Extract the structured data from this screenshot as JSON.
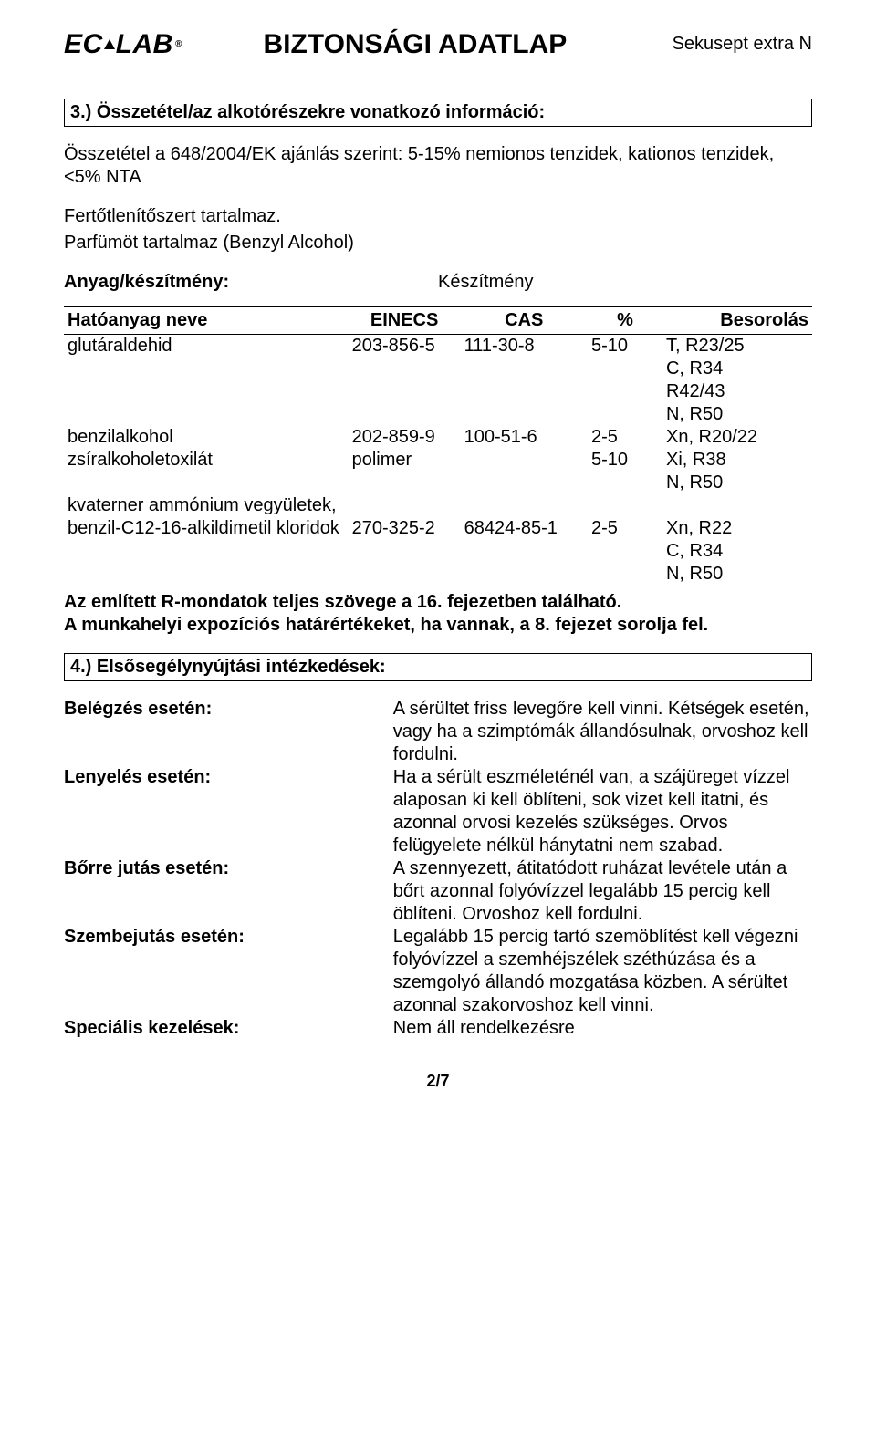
{
  "header": {
    "logo_text_1": "EC",
    "logo_text_2": "LAB",
    "logo_reg": "®",
    "doc_title": "BIZTONSÁGI ADATLAP",
    "product_name": "Sekusept extra N"
  },
  "section3": {
    "title": "3.) Összetétel/az alkotórészekre vonatkozó információ:",
    "composition_intro": "Összetétel a 648/2004/EK ajánlás szerint: 5-15% nemionos tenzidek, kationos tenzidek, <5% NTA",
    "disinfectant_note": "Fertőtlenítőszert tartalmaz.",
    "perfume_note": "Parfümöt tartalmaz (Benzyl Alcohol)",
    "material_label": "Anyag/készítmény:",
    "material_value": "Készítmény",
    "table": {
      "headers": {
        "name": "Hatóanyag neve",
        "einecs": "EINECS",
        "cas": "CAS",
        "pct": "%",
        "class": "Besorolás"
      },
      "rows": [
        {
          "name": "glutáraldehid",
          "einecs": "203-856-5",
          "cas": "111-30-8",
          "pct": "5-10",
          "class": [
            "T, R23/25",
            "C, R34",
            "R42/43",
            "N, R50"
          ]
        },
        {
          "name": "benzilalkohol",
          "einecs": "202-859-9",
          "cas": "100-51-6",
          "pct": "2-5",
          "class": [
            "Xn, R20/22"
          ]
        },
        {
          "name": "zsíralkoholetoxilát",
          "einecs": "polimer",
          "cas": "",
          "pct": "5-10",
          "class": [
            "Xi, R38",
            "N, R50"
          ]
        },
        {
          "name": "kvaterner ammónium vegyületek,",
          "einecs": "",
          "cas": "",
          "pct": "",
          "class": []
        },
        {
          "name": "benzil-C12-16-alkildimetil kloridok",
          "einecs": "270-325-2",
          "cas": "68424-85-1",
          "pct": "2-5",
          "class": [
            "Xn, R22",
            "C, R34",
            "N, R50"
          ]
        }
      ]
    },
    "r_phrases_note": "Az említett R-mondatok teljes szövege a 16. fejezetben található.",
    "exposure_note": "A munkahelyi expozíciós határértékeket, ha vannak, a 8. fejezet sorolja fel."
  },
  "section4": {
    "title": "4.) Elsősegélynyújtási intézkedések:",
    "items": [
      {
        "label": "Belégzés esetén:",
        "text": "A sérültet friss levegőre kell vinni. Kétségek esetén, vagy ha a szimptómák állandósulnak, orvoshoz kell fordulni."
      },
      {
        "label": "Lenyelés esetén:",
        "text": "Ha a sérült eszméleténél van, a szájüreget vízzel alaposan ki kell öblíteni, sok vizet kell itatni, és azonnal orvosi kezelés szükséges. Orvos felügyelete nélkül hánytatni nem szabad."
      },
      {
        "label": "Bőrre jutás esetén:",
        "text": "A szennyezett, átitatódott ruházat levétele után a bőrt azonnal folyóvízzel legalább 15 percig kell öblíteni. Orvoshoz kell fordulni."
      },
      {
        "label": "Szembejutás esetén:",
        "text": "Legalább 15 percig tartó szemöblítést kell végezni folyóvízzel a szemhéjszélek széthúzása és a szemgolyó állandó mozgatása közben. A sérültet azonnal szakorvoshoz kell vinni."
      },
      {
        "label": "Speciális kezelések:",
        "text": "Nem áll rendelkezésre"
      }
    ]
  },
  "page_number": "2/7"
}
